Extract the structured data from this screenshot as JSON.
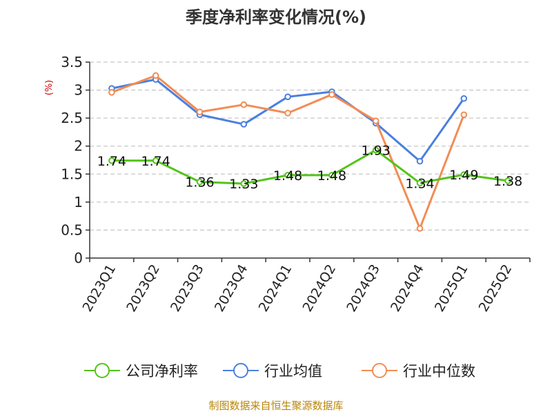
{
  "colors": {
    "company": "#52c41a",
    "industry_avg": "#4a7fe0",
    "industry_median": "#f28c54",
    "grid": "#c8c8c8",
    "unit": "#d00000",
    "source": "#b8860b"
  },
  "chart_data": {
    "type": "line",
    "title": "季度净利率变化情况(%)",
    "ylabel": "(%)",
    "ylim": [
      0,
      3.5
    ],
    "yticks": [
      0,
      0.5,
      1,
      1.5,
      2,
      2.5,
      3,
      3.5
    ],
    "grid": true,
    "legend_position": "bottom",
    "categories": [
      "2023Q1",
      "2023Q2",
      "2023Q3",
      "2023Q4",
      "2024Q1",
      "2024Q2",
      "2024Q3",
      "2024Q4",
      "2025Q1",
      "2025Q2"
    ],
    "series": [
      {
        "name": "公司净利率",
        "color_key": "company",
        "values": [
          1.74,
          1.74,
          1.36,
          1.33,
          1.48,
          1.48,
          1.93,
          1.34,
          1.49,
          1.38
        ],
        "labels": [
          "1.74",
          "1.74",
          "1.36",
          "1.33",
          "1.48",
          "1.48",
          "1.93",
          "1.34",
          "1.49",
          "1.38"
        ]
      },
      {
        "name": "行业均值",
        "color_key": "industry_avg",
        "values": [
          3.03,
          3.19,
          2.56,
          2.39,
          2.88,
          2.97,
          2.41,
          1.73,
          2.85,
          null
        ]
      },
      {
        "name": "行业中位数",
        "color_key": "industry_median",
        "values": [
          2.96,
          3.26,
          2.61,
          2.74,
          2.59,
          2.92,
          2.45,
          0.53,
          2.56,
          null
        ]
      }
    ]
  },
  "source_text": "制图数据来自恒生聚源数据库"
}
